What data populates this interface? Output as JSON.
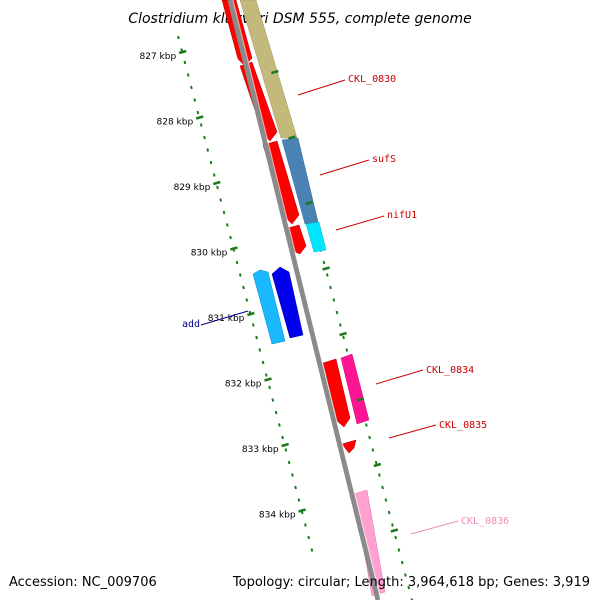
{
  "title": "Clostridium kluyveri DSM 555, complete genome",
  "accession": "Accession: NC_009706",
  "summary": "Topology: circular; Length: 3,964,618 bp; Genes: 3,919",
  "colors": {
    "backbone": "#8a8a8a",
    "ticks": "#1e7a1e",
    "label_red": "#cc0000",
    "label_blue": "#00008b",
    "label_pink": "#f08cbc"
  },
  "ticks": [
    {
      "label": "827 kbp"
    },
    {
      "label": "828 kbp"
    },
    {
      "label": "829 kbp"
    },
    {
      "label": "830 kbp"
    },
    {
      "label": "831 kbp"
    },
    {
      "label": "832 kbp"
    },
    {
      "label": "833 kbp"
    },
    {
      "label": "834 kbp"
    }
  ],
  "gene_labels": [
    {
      "name": "CKL_0830",
      "color": "#cc0000"
    },
    {
      "name": "sufS",
      "color": "#cc0000"
    },
    {
      "name": "nifU1",
      "color": "#cc0000"
    },
    {
      "name": "add",
      "color": "#00008b"
    },
    {
      "name": "CKL_0834",
      "color": "#cc0000"
    },
    {
      "name": "CKL_0835",
      "color": "#cc0000"
    },
    {
      "name": "CKL_0836",
      "color": "#f08cbc"
    }
  ]
}
